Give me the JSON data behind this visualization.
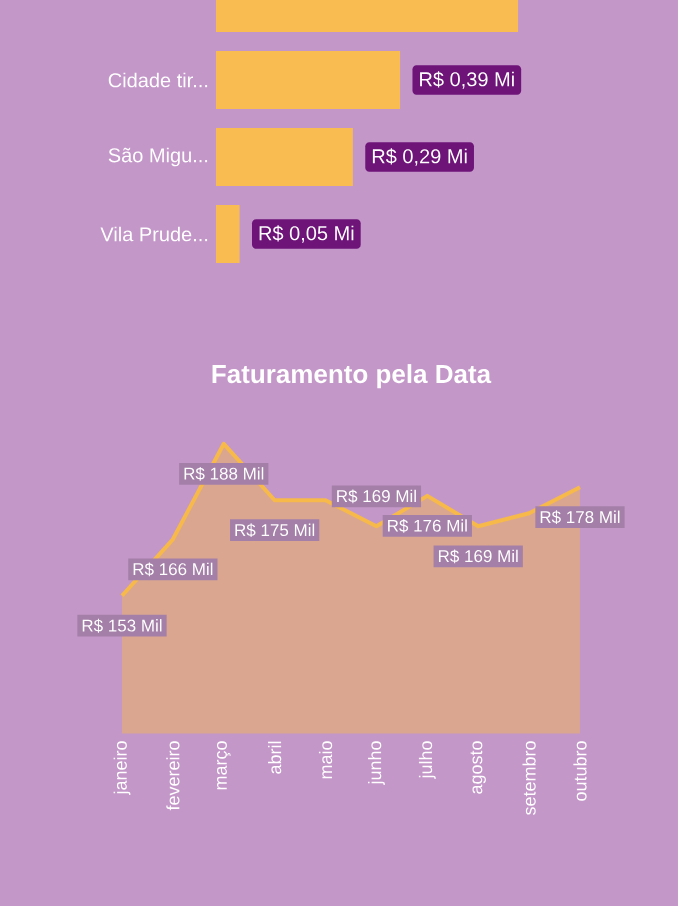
{
  "chart_data": [
    {
      "type": "bar",
      "orientation": "horizontal",
      "categories": [
        null,
        "Cidade tir...",
        "São Migu...",
        "Vila Prude..."
      ],
      "values": [
        0.64,
        0.39,
        0.29,
        0.05
      ],
      "value_labels": [
        null,
        "R$ 0,39 Mi",
        "R$ 0,29 Mi",
        "R$ 0,05 Mi"
      ],
      "color": "#f8bc50",
      "tick_labels": "y"
    },
    {
      "type": "area",
      "title": "Faturamento pela Data",
      "categories": [
        "janeiro",
        "fevereiro",
        "março",
        "abril",
        "maio",
        "junho",
        "julho",
        "agosto",
        "setembro",
        "outubro"
      ],
      "values": [
        153,
        166,
        188,
        175,
        175,
        169,
        176,
        169,
        172,
        178
      ],
      "value_labels": [
        "R$ 153 Mil",
        "R$ 166 Mil",
        "R$ 188 Mil",
        "R$ 175 Mil",
        null,
        "R$ 169 Mil",
        "R$ 176 Mil",
        "R$ 169 Mil",
        null,
        "R$ 178 Mil"
      ],
      "color": "#f6b94a",
      "tick_labels": "x"
    }
  ]
}
